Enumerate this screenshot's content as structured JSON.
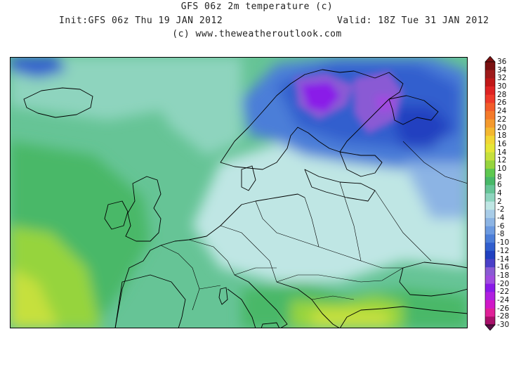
{
  "header": {
    "title": "GFS 06z 2m temperature (c)",
    "init": "Init:GFS 06z Thu 19 JAN 2012",
    "valid": "Valid: 18Z Tue 31 JAN 2012",
    "credit": "(c) www.theweatheroutlook.com"
  },
  "colors": {
    "background": "#ffffff",
    "coast": "#000000"
  },
  "legend": {
    "labels": [
      "36",
      "34",
      "32",
      "30",
      "28",
      "26",
      "24",
      "22",
      "20",
      "18",
      "16",
      "14",
      "12",
      "10",
      "8",
      "6",
      "4",
      "2",
      "-2",
      "-4",
      "-6",
      "-8",
      "-10",
      "-12",
      "-14",
      "-16",
      "-18",
      "-20",
      "-22",
      "-24",
      "-26",
      "-28",
      "-30"
    ],
    "colors": [
      "#7a1010",
      "#9e1a1a",
      "#c01818",
      "#de2323",
      "#ee3a2a",
      "#f25c2a",
      "#f47a2a",
      "#f49a2e",
      "#f4b830",
      "#f2d634",
      "#e6e636",
      "#c6e03c",
      "#96d43e",
      "#5ec850",
      "#48b868",
      "#66c496",
      "#8ed4be",
      "#bfe6e4",
      "#a8cce8",
      "#8cb4e4",
      "#6c9ae0",
      "#4c7ed8",
      "#305ece",
      "#2040c0",
      "#4a40c8",
      "#8a5ad4",
      "#a04ce0",
      "#8a1ae8",
      "#b020e0",
      "#d018c8",
      "#e02098",
      "#a8106a",
      "#5a1046"
    ]
  }
}
